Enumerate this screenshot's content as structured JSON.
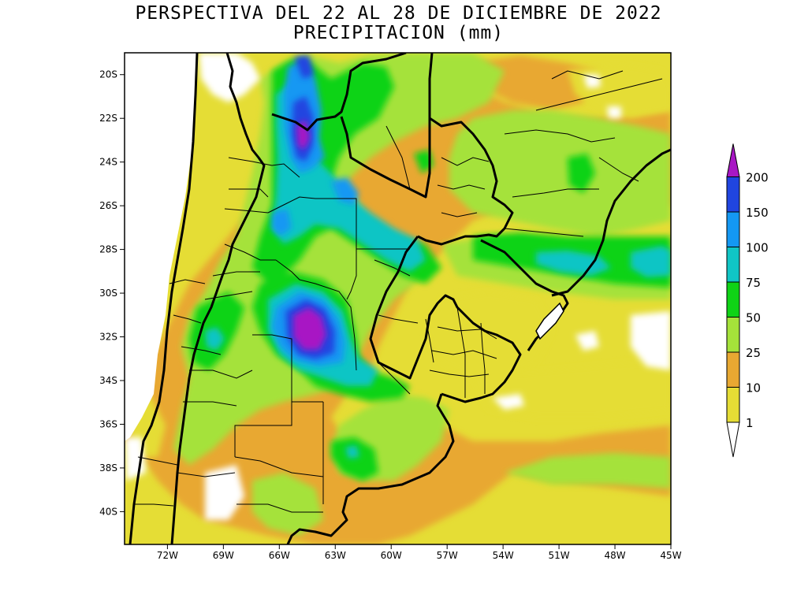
{
  "title": {
    "line1": "PERSPECTIVA DEL 22 AL 28 DE DICIEMBRE DE 2022",
    "line2": "PRECIPITACION (mm)"
  },
  "map": {
    "lat_range": [
      -41.5,
      -19
    ],
    "lon_range": [
      -74.3,
      -45
    ],
    "lat_ticks": [
      {
        "value": -20,
        "label": "20S"
      },
      {
        "value": -22,
        "label": "22S"
      },
      {
        "value": -24,
        "label": "24S"
      },
      {
        "value": -26,
        "label": "26S"
      },
      {
        "value": -28,
        "label": "28S"
      },
      {
        "value": -30,
        "label": "30S"
      },
      {
        "value": -32,
        "label": "32S"
      },
      {
        "value": -34,
        "label": "34S"
      },
      {
        "value": -36,
        "label": "36S"
      },
      {
        "value": -38,
        "label": "38S"
      },
      {
        "value": -40,
        "label": "40S"
      }
    ],
    "lon_ticks": [
      {
        "value": -72,
        "label": "72W"
      },
      {
        "value": -69,
        "label": "69W"
      },
      {
        "value": -66,
        "label": "66W"
      },
      {
        "value": -63,
        "label": "63W"
      },
      {
        "value": -60,
        "label": "60W"
      },
      {
        "value": -57,
        "label": "57W"
      },
      {
        "value": -54,
        "label": "54W"
      },
      {
        "value": -51,
        "label": "51W"
      },
      {
        "value": -48,
        "label": "48W"
      },
      {
        "value": -45,
        "label": "45W"
      }
    ]
  },
  "colorbar": {
    "levels": [
      {
        "label": "1",
        "color": "#e5dd35"
      },
      {
        "label": "10",
        "color": "#e8a832"
      },
      {
        "label": "25",
        "color": "#a5e23a"
      },
      {
        "label": "50",
        "color": "#0fd316"
      },
      {
        "label": "75",
        "color": "#10c5c5"
      },
      {
        "label": "100",
        "color": "#1498f3"
      },
      {
        "label": "150",
        "color": "#2045e0"
      },
      {
        "label": "200",
        "color": "#a817c4"
      }
    ],
    "under_color": "#ffffff",
    "over_color": "#a817c4"
  },
  "colors": {
    "c1": "#e5dd35",
    "c10": "#e8a832",
    "c25": "#a5e23a",
    "c50": "#0fd316",
    "c75": "#10c5c5",
    "c100": "#1498f3",
    "c150": "#2045e0",
    "c200": "#a817c4"
  }
}
